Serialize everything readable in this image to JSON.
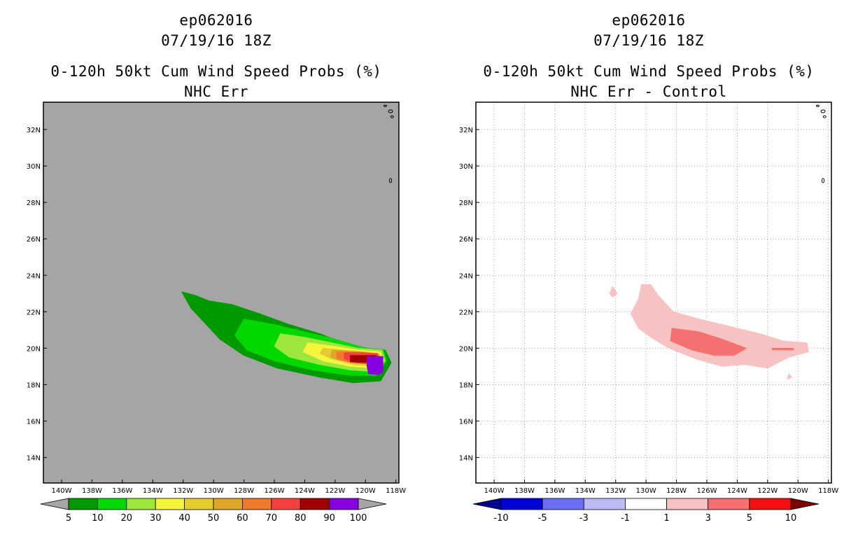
{
  "chart_data": [
    {
      "type": "filled-contour-map",
      "storm_id": "ep062016",
      "datetime": "07/19/16 18Z",
      "title": "0-120h 50kt Cum Wind Speed Probs (%)",
      "subtitle": "NHC Err",
      "x_ticks": [
        "140W",
        "138W",
        "136W",
        "134W",
        "132W",
        "130W",
        "128W",
        "126W",
        "124W",
        "122W",
        "120W",
        "118W"
      ],
      "y_ticks": [
        "14N",
        "16N",
        "18N",
        "20N",
        "22N",
        "24N",
        "26N",
        "28N",
        "30N",
        "32N"
      ],
      "xlim": [
        -141.2,
        -117.8
      ],
      "ylim": [
        12.6,
        33.5
      ],
      "background_color": "#a5a5a5",
      "grid": false,
      "colorbar": {
        "labels": [
          "5",
          "10",
          "20",
          "30",
          "40",
          "50",
          "60",
          "70",
          "80",
          "90",
          "100"
        ],
        "colors": [
          "#009a00",
          "#00d900",
          "#9de63c",
          "#f5f53c",
          "#e2cc30",
          "#e0a62a",
          "#f07a2c",
          "#f54040",
          "#a00000",
          "#8600e0"
        ],
        "under_color": "#a5a5a5",
        "over_color": "#a5a5a5"
      },
      "contours": [
        {
          "level": 5,
          "color": "#009a00",
          "polygon": [
            [
              -132.1,
              23.1
            ],
            [
              -131.2,
              22.9
            ],
            [
              -130.3,
              22.6
            ],
            [
              -128.8,
              22.4
            ],
            [
              -127.0,
              21.9
            ],
            [
              -125.0,
              21.3
            ],
            [
              -123.0,
              20.8
            ],
            [
              -121.5,
              20.3
            ],
            [
              -119.9,
              20.0
            ],
            [
              -118.7,
              19.9
            ],
            [
              -118.3,
              19.2
            ],
            [
              -119.0,
              18.2
            ],
            [
              -120.8,
              18.1
            ],
            [
              -123.0,
              18.4
            ],
            [
              -125.8,
              18.9
            ],
            [
              -128.0,
              19.6
            ],
            [
              -129.6,
              20.5
            ],
            [
              -130.6,
              21.4
            ],
            [
              -131.5,
              22.2
            ]
          ]
        },
        {
          "level": 10,
          "color": "#00d900",
          "polygon": [
            [
              -128.0,
              21.6
            ],
            [
              -126.0,
              21.3
            ],
            [
              -124.0,
              20.9
            ],
            [
              -122.0,
              20.5
            ],
            [
              -120.0,
              20.0
            ],
            [
              -118.8,
              19.9
            ],
            [
              -118.6,
              19.3
            ],
            [
              -119.3,
              18.5
            ],
            [
              -121.0,
              18.5
            ],
            [
              -123.5,
              18.8
            ],
            [
              -126.0,
              19.3
            ],
            [
              -127.8,
              19.9
            ],
            [
              -128.6,
              20.7
            ]
          ]
        },
        {
          "level": 20,
          "color": "#9de63c",
          "polygon": [
            [
              -125.6,
              20.8
            ],
            [
              -124.0,
              20.6
            ],
            [
              -122.2,
              20.3
            ],
            [
              -120.5,
              20.0
            ],
            [
              -118.9,
              19.9
            ],
            [
              -118.7,
              19.3
            ],
            [
              -119.4,
              18.7
            ],
            [
              -121.0,
              18.8
            ],
            [
              -123.0,
              19.1
            ],
            [
              -125.0,
              19.5
            ],
            [
              -126.0,
              20.1
            ]
          ]
        },
        {
          "level": 30,
          "color": "#f5f53c",
          "polygon": [
            [
              -123.8,
              20.3
            ],
            [
              -122.0,
              20.1
            ],
            [
              -120.5,
              19.9
            ],
            [
              -119.0,
              19.8
            ],
            [
              -118.8,
              19.3
            ],
            [
              -119.4,
              18.9
            ],
            [
              -121.0,
              19.0
            ],
            [
              -122.8,
              19.3
            ],
            [
              -124.1,
              19.8
            ]
          ]
        },
        {
          "level": 40,
          "color": "#e2cc30",
          "polygon": [
            [
              -122.8,
              20.0
            ],
            [
              -121.5,
              19.9
            ],
            [
              -120.0,
              19.8
            ],
            [
              -119.1,
              19.7
            ],
            [
              -118.9,
              19.3
            ],
            [
              -119.4,
              19.0
            ],
            [
              -120.8,
              19.1
            ],
            [
              -122.2,
              19.4
            ],
            [
              -123.0,
              19.7
            ]
          ]
        },
        {
          "level": 50,
          "color": "#e0a62a",
          "polygon": [
            [
              -122.2,
              19.9
            ],
            [
              -120.6,
              19.8
            ],
            [
              -119.2,
              19.7
            ],
            [
              -119.0,
              19.3
            ],
            [
              -119.4,
              19.1
            ],
            [
              -121.0,
              19.2
            ],
            [
              -122.3,
              19.5
            ]
          ]
        },
        {
          "level": 60,
          "color": "#f07a2c",
          "polygon": [
            [
              -121.9,
              19.8
            ],
            [
              -120.5,
              19.8
            ],
            [
              -119.2,
              19.7
            ],
            [
              -119.0,
              19.3
            ],
            [
              -119.4,
              19.1
            ],
            [
              -120.9,
              19.2
            ],
            [
              -121.9,
              19.4
            ]
          ]
        },
        {
          "level": 70,
          "color": "#f54040",
          "polygon": [
            [
              -121.4,
              19.75
            ],
            [
              -120.2,
              19.75
            ],
            [
              -119.2,
              19.7
            ],
            [
              -119.0,
              19.3
            ],
            [
              -119.4,
              19.1
            ],
            [
              -120.6,
              19.2
            ],
            [
              -121.4,
              19.4
            ]
          ]
        },
        {
          "level": 80,
          "color": "#a00000",
          "polygon": [
            [
              -121.0,
              19.6
            ],
            [
              -119.3,
              19.6
            ],
            [
              -119.0,
              19.3
            ],
            [
              -119.4,
              19.2
            ],
            [
              -121.0,
              19.25
            ]
          ]
        },
        {
          "level": 90,
          "color": "#8600e0",
          "polygon": [
            [
              -119.9,
              19.55
            ],
            [
              -118.85,
              19.55
            ],
            [
              -118.85,
              18.7
            ],
            [
              -119.2,
              18.55
            ],
            [
              -119.8,
              18.6
            ],
            [
              -119.9,
              19.0
            ]
          ]
        }
      ]
    },
    {
      "type": "filled-contour-map",
      "storm_id": "ep062016",
      "datetime": "07/19/16 18Z",
      "title": "0-120h 50kt Cum Wind Speed Probs (%)",
      "subtitle": "NHC Err - Control",
      "x_ticks": [
        "140W",
        "138W",
        "136W",
        "134W",
        "132W",
        "130W",
        "128W",
        "126W",
        "124W",
        "122W",
        "120W",
        "118W"
      ],
      "y_ticks": [
        "14N",
        "16N",
        "18N",
        "20N",
        "22N",
        "24N",
        "26N",
        "28N",
        "30N",
        "32N"
      ],
      "xlim": [
        -141.2,
        -117.8
      ],
      "ylim": [
        12.6,
        33.5
      ],
      "background_color": "#ffffff",
      "grid": true,
      "colorbar": {
        "labels": [
          "-10",
          "-5",
          "-3",
          "-1",
          "1",
          "3",
          "5",
          "10"
        ],
        "colors": [
          "#0000d9",
          "#6e6ef5",
          "#bcbcf5",
          "#ffffff",
          "#f7c2c2",
          "#f57070",
          "#f50f0f"
        ],
        "under_color": "#00008c",
        "over_color": "#7a0000"
      },
      "contours": [
        {
          "level": 1,
          "color": "#f7c2c2",
          "polygon": [
            [
              -130.3,
              23.5
            ],
            [
              -129.7,
              23.5
            ],
            [
              -129.2,
              22.9
            ],
            [
              -128.2,
              22.0
            ],
            [
              -126.5,
              21.6
            ],
            [
              -124.5,
              21.2
            ],
            [
              -122.5,
              20.8
            ],
            [
              -121.0,
              20.4
            ],
            [
              -119.4,
              20.3
            ],
            [
              -119.3,
              19.8
            ],
            [
              -120.6,
              19.5
            ],
            [
              -122.0,
              18.9
            ],
            [
              -123.5,
              19.1
            ],
            [
              -125.0,
              19.0
            ],
            [
              -126.7,
              19.4
            ],
            [
              -128.5,
              20.0
            ],
            [
              -129.7,
              20.6
            ],
            [
              -130.5,
              21.1
            ],
            [
              -131.0,
              21.9
            ],
            [
              -130.5,
              22.7
            ]
          ]
        },
        {
          "level": 1,
          "color": "#f7c2c2",
          "polygon": [
            [
              -132.2,
              23.4
            ],
            [
              -131.9,
              23.0
            ],
            [
              -132.2,
              22.8
            ],
            [
              -132.4,
              23.0
            ]
          ]
        },
        {
          "level": 1,
          "color": "#f7c2c2",
          "polygon": [
            [
              -120.6,
              18.6
            ],
            [
              -120.4,
              18.4
            ],
            [
              -120.7,
              18.3
            ]
          ]
        },
        {
          "level": 3,
          "color": "#f57070",
          "polygon": [
            [
              -128.3,
              21.1
            ],
            [
              -126.5,
              20.9
            ],
            [
              -125.0,
              20.5
            ],
            [
              -123.4,
              20.0
            ],
            [
              -124.2,
              19.6
            ],
            [
              -125.5,
              19.6
            ],
            [
              -127.0,
              19.9
            ],
            [
              -128.4,
              20.4
            ]
          ]
        },
        {
          "level": 3,
          "color": "#f57070",
          "polygon": [
            [
              -121.7,
              20.0
            ],
            [
              -120.3,
              20.0
            ],
            [
              -120.3,
              19.9
            ],
            [
              -121.7,
              19.9
            ]
          ]
        }
      ]
    }
  ]
}
